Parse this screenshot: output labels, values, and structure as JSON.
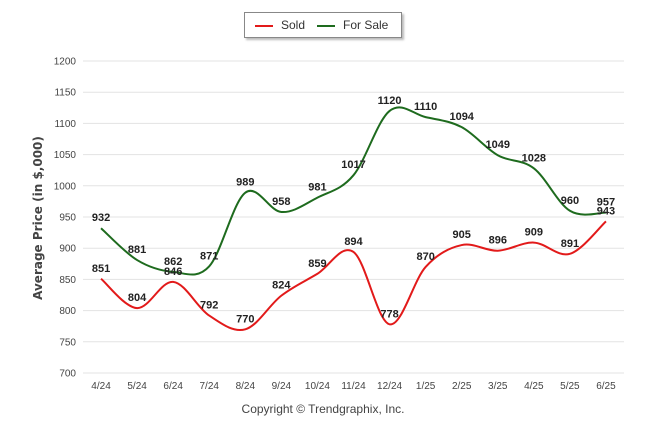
{
  "chart_data": {
    "type": "line",
    "title": "",
    "xlabel": "",
    "ylabel": "Average Price (in $,000)",
    "ylim": [
      700,
      1200
    ],
    "yticks": [
      700,
      750,
      800,
      850,
      900,
      950,
      1000,
      1050,
      1100,
      1150,
      1200
    ],
    "grid": "horizontal",
    "legend": "top-center",
    "categories": [
      "4/24",
      "5/24",
      "6/24",
      "7/24",
      "8/24",
      "9/24",
      "10/24",
      "11/24",
      "12/24",
      "1/25",
      "2/25",
      "3/25",
      "4/25",
      "5/25",
      "6/25"
    ],
    "series": [
      {
        "name": "Sold",
        "color": "#e21a1a",
        "values": [
          851,
          804,
          846,
          792,
          770,
          824,
          859,
          894,
          778,
          870,
          905,
          896,
          909,
          891,
          943
        ]
      },
      {
        "name": "For Sale",
        "color": "#1e6b1e",
        "values": [
          932,
          881,
          862,
          871,
          989,
          958,
          981,
          1017,
          1120,
          1110,
          1094,
          1049,
          1028,
          960,
          957
        ]
      }
    ]
  },
  "footer": {
    "copyright": "Copyright © Trendgraphix, Inc."
  }
}
